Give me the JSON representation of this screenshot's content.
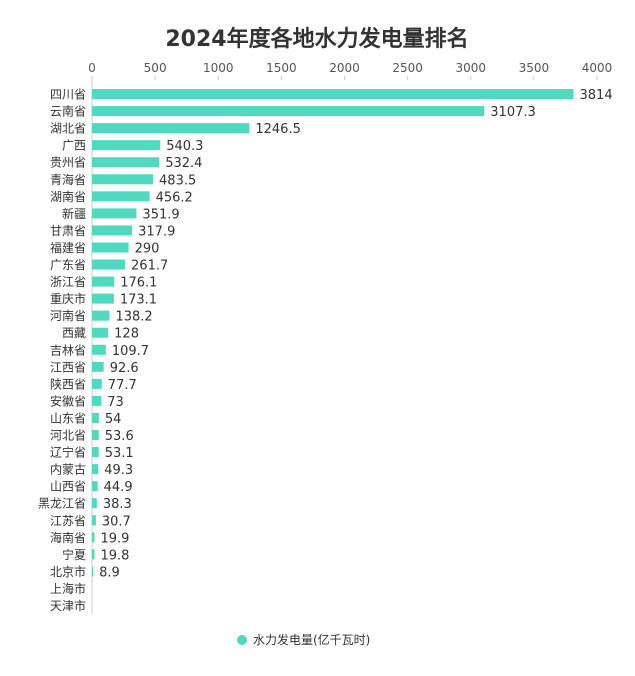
{
  "chart_data": {
    "type": "bar",
    "orientation": "horizontal",
    "title": "2024年度各地水力发电量排名",
    "series_name": "水力发电量(亿千瓦时)",
    "color": "#4fd9be",
    "x_ticks": [
      0,
      500,
      1000,
      1500,
      2000,
      2500,
      3000,
      3500,
      4000
    ],
    "xlim": [
      0,
      4000
    ],
    "xlabel": "",
    "ylabel": "",
    "legend_position": "bottom-center",
    "categories": [
      "四川省",
      "云南省",
      "湖北省",
      "广西",
      "贵州省",
      "青海省",
      "湖南省",
      "新疆",
      "甘肃省",
      "福建省",
      "广东省",
      "浙江省",
      "重庆市",
      "河南省",
      "西藏",
      "吉林省",
      "江西省",
      "陕西省",
      "安徽省",
      "山东省",
      "河北省",
      "辽宁省",
      "内蒙古",
      "山西省",
      "黑龙江省",
      "江苏省",
      "海南省",
      "宁夏",
      "北京市",
      "上海市",
      "天津市"
    ],
    "values": [
      3814,
      3107.3,
      1246.5,
      540.3,
      532.4,
      483.5,
      456.2,
      351.9,
      317.9,
      290,
      261.7,
      176.1,
      173.1,
      138.2,
      128,
      109.7,
      92.6,
      77.7,
      73,
      54,
      53.6,
      53.1,
      49.3,
      44.9,
      38.3,
      30.7,
      19.9,
      19.8,
      8.9,
      null,
      null
    ],
    "labels": [
      "3814",
      "3107.3",
      "1246.5",
      "540.3",
      "532.4",
      "483.5",
      "456.2",
      "351.9",
      "317.9",
      "290",
      "261.7",
      "176.1",
      "173.1",
      "138.2",
      "128",
      "109.7",
      "92.6",
      "77.7",
      "73",
      "54",
      "53.6",
      "53.1",
      "49.3",
      "44.9",
      "38.3",
      "30.7",
      "19.9",
      "19.8",
      "8.9",
      "",
      ""
    ]
  }
}
